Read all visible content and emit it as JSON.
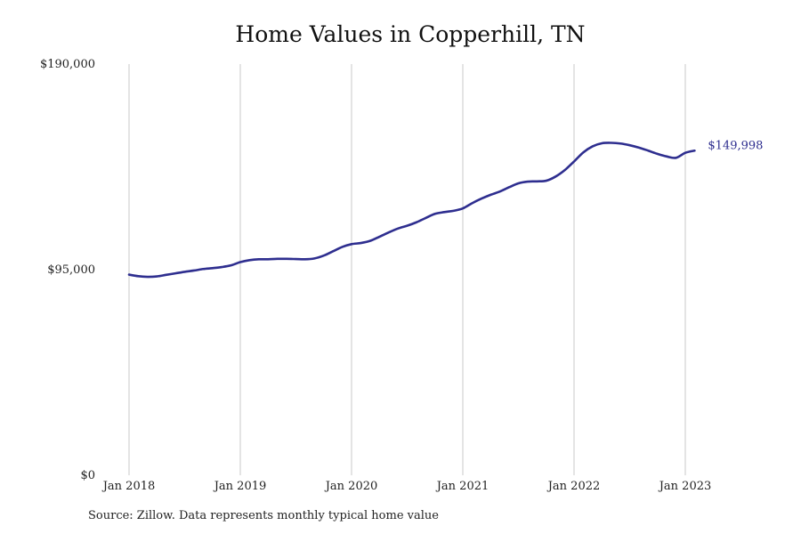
{
  "chart_data": {
    "type": "line",
    "title": "Home Values in Copperhill, TN",
    "source_note": "Source: Zillow. Data represents monthly typical home value",
    "xlabel": "",
    "ylabel": "",
    "ylim": [
      0,
      190000
    ],
    "y_ticks": [
      {
        "value": 0,
        "label": "$0"
      },
      {
        "value": 95000,
        "label": "$95,000"
      },
      {
        "value": 190000,
        "label": "$190,000"
      }
    ],
    "x_ticks": [
      {
        "value": "2018-01",
        "label": "Jan 2018"
      },
      {
        "value": "2019-01",
        "label": "Jan 2019"
      },
      {
        "value": "2020-01",
        "label": "Jan 2020"
      },
      {
        "value": "2021-01",
        "label": "Jan 2021"
      },
      {
        "value": "2022-01",
        "label": "Jan 2022"
      },
      {
        "value": "2023-01",
        "label": "Jan 2023"
      }
    ],
    "grid": {
      "vertical": true,
      "horizontal": false
    },
    "legend": "none",
    "series": [
      {
        "color": "#2e2e8f",
        "end_label": "$149,998",
        "x": [
          "2018-01",
          "2018-02",
          "2018-03",
          "2018-04",
          "2018-05",
          "2018-06",
          "2018-07",
          "2018-08",
          "2018-09",
          "2018-10",
          "2018-11",
          "2018-12",
          "2019-01",
          "2019-02",
          "2019-03",
          "2019-04",
          "2019-05",
          "2019-06",
          "2019-07",
          "2019-08",
          "2019-09",
          "2019-10",
          "2019-11",
          "2019-12",
          "2020-01",
          "2020-02",
          "2020-03",
          "2020-04",
          "2020-05",
          "2020-06",
          "2020-07",
          "2020-08",
          "2020-09",
          "2020-10",
          "2020-11",
          "2020-12",
          "2021-01",
          "2021-02",
          "2021-03",
          "2021-04",
          "2021-05",
          "2021-06",
          "2021-07",
          "2021-08",
          "2021-09",
          "2021-10",
          "2021-11",
          "2021-12",
          "2022-01",
          "2022-02",
          "2022-03",
          "2022-04",
          "2022-05",
          "2022-06",
          "2022-07",
          "2022-08",
          "2022-09",
          "2022-10",
          "2022-11",
          "2022-12",
          "2023-01",
          "2023-02"
        ],
        "values": [
          92700,
          92000,
          91700,
          91900,
          92600,
          93300,
          94000,
          94600,
          95300,
          95700,
          96200,
          97000,
          98500,
          99400,
          99800,
          99800,
          100000,
          100000,
          99900,
          99800,
          100200,
          101500,
          103500,
          105500,
          106800,
          107300,
          108300,
          110200,
          112200,
          114000,
          115300,
          116900,
          118900,
          120800,
          121600,
          122200,
          123300,
          125700,
          127800,
          129600,
          131100,
          133100,
          134900,
          135700,
          135800,
          136100,
          138000,
          141000,
          145000,
          149200,
          152000,
          153400,
          153600,
          153300,
          152500,
          151400,
          150000,
          148500,
          147300,
          146700,
          149000,
          149998
        ]
      }
    ]
  }
}
